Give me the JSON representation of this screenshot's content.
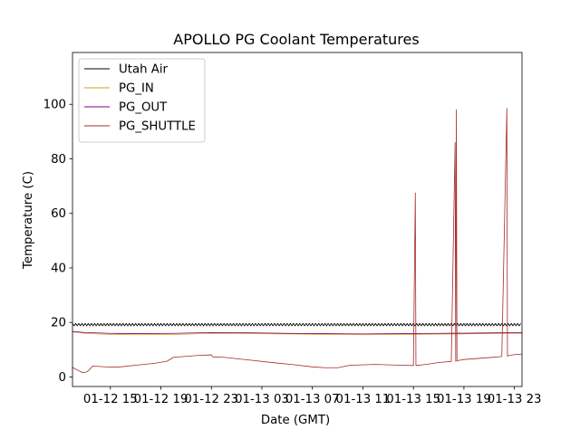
{
  "chart_data": {
    "type": "line",
    "title": "APOLLO PG Coolant Temperatures",
    "xlabel": "Date (GMT)",
    "ylabel": "Temperature (C)",
    "x_unit": "hours since 01-12 12:00 GMT",
    "xlim": [
      0,
      35.6
    ],
    "ylim": [
      -3.5,
      119
    ],
    "x_ticks": [
      {
        "value": 3,
        "label": "01-12 15"
      },
      {
        "value": 7,
        "label": "01-12 19"
      },
      {
        "value": 11,
        "label": "01-12 23"
      },
      {
        "value": 15,
        "label": "01-13 03"
      },
      {
        "value": 19,
        "label": "01-13 07"
      },
      {
        "value": 23,
        "label": "01-13 11"
      },
      {
        "value": 27,
        "label": "01-13 15"
      },
      {
        "value": 31,
        "label": "01-13 19"
      },
      {
        "value": 35,
        "label": "01-13 23"
      }
    ],
    "y_ticks": [
      0,
      20,
      40,
      60,
      80,
      100
    ],
    "grid": false,
    "legend_position": "top-left",
    "series": [
      {
        "name": "Utah Air",
        "color": "#000000",
        "style": "oscillating",
        "x": [
          0,
          35.6
        ],
        "y": [
          19.2,
          19.2
        ],
        "amplitude": 0.45,
        "period": 0.25
      },
      {
        "name": "PG_IN",
        "color": "#d4a017",
        "x": [
          0,
          1,
          3,
          5,
          8,
          11,
          14,
          17,
          20,
          23,
          26,
          29,
          32,
          35.6
        ],
        "y": [
          16.5,
          16.0,
          15.6,
          15.5,
          15.6,
          16.0,
          15.9,
          15.8,
          15.6,
          15.5,
          15.6,
          15.7,
          15.9,
          16.0
        ]
      },
      {
        "name": "PG_OUT",
        "color": "#800080",
        "x": [
          0,
          1,
          3,
          5,
          8,
          11,
          14,
          17,
          20,
          23,
          26,
          29,
          32,
          35.6
        ],
        "y": [
          16.7,
          16.3,
          16.0,
          15.9,
          16.0,
          16.3,
          16.2,
          16.0,
          15.9,
          15.8,
          15.9,
          16.0,
          16.1,
          16.3
        ]
      },
      {
        "name": "PG_SHUTTLE",
        "color": "#a52a2a",
        "x": [
          0,
          0.4,
          0.8,
          1.1,
          1.3,
          1.6,
          3.0,
          3.8,
          5.0,
          6.5,
          7.5,
          8.0,
          10.0,
          11.0,
          11.1,
          12.0,
          14.0,
          16.0,
          17.5,
          19.0,
          20.0,
          21.0,
          22.0,
          24.0,
          26.0,
          27.0,
          27.15,
          27.2,
          28.0,
          29.0,
          30.0,
          30.3,
          30.35,
          30.4,
          30.45,
          30.5,
          31.0,
          33.0,
          34.0,
          34.4,
          34.45,
          34.5,
          35.0,
          35.6
        ],
        "y": [
          3.5,
          2.5,
          1.6,
          1.8,
          2.5,
          4.0,
          3.6,
          3.7,
          4.3,
          5.0,
          5.8,
          7.2,
          7.9,
          8.1,
          7.4,
          7.2,
          6.2,
          5.2,
          4.5,
          3.7,
          3.4,
          3.4,
          4.3,
          4.6,
          4.3,
          4.2,
          67.5,
          4.2,
          4.6,
          5.3,
          5.7,
          86.0,
          5.7,
          98.0,
          5.8,
          6.0,
          6.4,
          7.1,
          7.5,
          98.5,
          7.6,
          7.8,
          8.2,
          8.4
        ]
      }
    ]
  }
}
